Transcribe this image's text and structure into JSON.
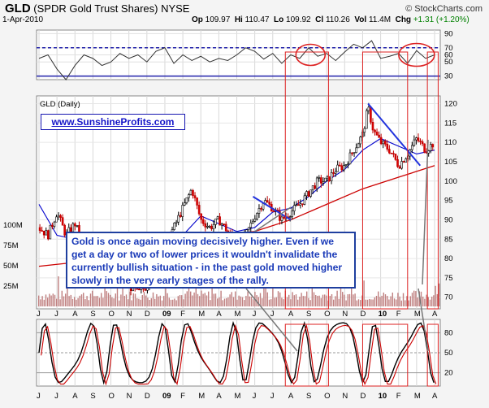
{
  "header": {
    "ticker": "GLD",
    "name": "(SPDR Gold Trust Shares)",
    "exchange": "NYSE",
    "credit": "© StockCharts.com",
    "date": "1-Apr-2010",
    "open_label": "Op",
    "open": "109.97",
    "high_label": "Hi",
    "high": "110.47",
    "low_label": "Lo",
    "low": "109.92",
    "close_label": "Cl",
    "close": "110.26",
    "volume_label": "Vol",
    "volume": "11.4M",
    "change_label": "Chg",
    "change": "+1.31 (+1.20%)"
  },
  "site_banner": "www.SunshineProfits.com",
  "annotation": "Gold is once again moving decisively higher. Even if we get a day or two of lower prices it wouldn't invalidate the currently bullish situation - in the past gold moved higher slowly in the very early stages of the rally.",
  "colors": {
    "background": "#f4f4f4",
    "price_candle": "#000000",
    "ma_short": "#0000cc",
    "ma_long": "#cc0000",
    "highlight": "#dd2222",
    "trendline": "#2233dd",
    "volume": "#c08080",
    "annotation_text": "#1a3ab8"
  },
  "chart_data": {
    "type": "candlestick",
    "x_labels": [
      "J",
      "J",
      "A",
      "S",
      "O",
      "N",
      "D",
      "09",
      "F",
      "M",
      "A",
      "M",
      "J",
      "J",
      "A",
      "S",
      "O",
      "N",
      "D",
      "10",
      "F",
      "M",
      "A"
    ],
    "price_panel": {
      "label": "GLD (Daily)",
      "yticks": [
        70,
        75,
        80,
        85,
        90,
        95,
        100,
        105,
        110,
        115,
        120
      ],
      "ylim": [
        67,
        122
      ],
      "price_path": [
        [
          0,
          88
        ],
        [
          0.5,
          86
        ],
        [
          1,
          92
        ],
        [
          1.5,
          86
        ],
        [
          2,
          89
        ],
        [
          2.5,
          83
        ],
        [
          3,
          80
        ],
        [
          3.5,
          84
        ],
        [
          4,
          78
        ],
        [
          4.5,
          75
        ],
        [
          5,
          73
        ],
        [
          5.5,
          71
        ],
        [
          6,
          73
        ],
        [
          6.5,
          79
        ],
        [
          7,
          84
        ],
        [
          7.5,
          88
        ],
        [
          8,
          93
        ],
        [
          8.5,
          98
        ],
        [
          9,
          90
        ],
        [
          9.5,
          88
        ],
        [
          10,
          90
        ],
        [
          10.5,
          87
        ],
        [
          11,
          84
        ],
        [
          11.5,
          86
        ],
        [
          12,
          91
        ],
        [
          12.5,
          95
        ],
        [
          13,
          93
        ],
        [
          13.5,
          90
        ],
        [
          14,
          92
        ],
        [
          14.5,
          94
        ],
        [
          15,
          97
        ],
        [
          15.5,
          100
        ],
        [
          16,
          100
        ],
        [
          16.5,
          103
        ],
        [
          17,
          104
        ],
        [
          17.5,
          108
        ],
        [
          18,
          112
        ],
        [
          18.3,
          119
        ],
        [
          18.6,
          113
        ],
        [
          19,
          110
        ],
        [
          19.5,
          108
        ],
        [
          20,
          104
        ],
        [
          20.5,
          107
        ],
        [
          21,
          111
        ],
        [
          21.5,
          108
        ],
        [
          22,
          110
        ]
      ],
      "ma_short_path": [
        [
          0,
          94
        ],
        [
          1,
          86
        ],
        [
          2,
          85
        ],
        [
          3,
          82
        ],
        [
          4,
          77
        ],
        [
          5,
          75
        ],
        [
          6,
          76
        ],
        [
          7,
          80
        ],
        [
          8,
          86
        ],
        [
          9,
          91
        ],
        [
          10,
          89
        ],
        [
          11,
          87
        ],
        [
          12,
          88
        ],
        [
          13,
          92
        ],
        [
          14,
          93
        ],
        [
          15,
          96
        ],
        [
          16,
          100
        ],
        [
          17,
          103
        ],
        [
          18,
          108
        ],
        [
          19,
          111
        ],
        [
          20,
          109
        ],
        [
          21,
          107
        ],
        [
          22,
          108
        ]
      ],
      "ma_long_path": [
        [
          0,
          78
        ],
        [
          2,
          79
        ],
        [
          4,
          80
        ],
        [
          6,
          81
        ],
        [
          8,
          84
        ],
        [
          10,
          86
        ],
        [
          12,
          87
        ],
        [
          14,
          90
        ],
        [
          16,
          94
        ],
        [
          18,
          98
        ],
        [
          20,
          101
        ],
        [
          22,
          104
        ]
      ],
      "trendlines": [
        {
          "from": [
            11.9,
            96
          ],
          "to": [
            14,
            90
          ]
        },
        {
          "from": [
            18.3,
            120
          ],
          "to": [
            21.2,
            104
          ]
        }
      ]
    },
    "volume_panel": {
      "yticks_labels": [
        "100M",
        "75M",
        "50M",
        "25M"
      ],
      "yticks": [
        100,
        75,
        50,
        25
      ],
      "max": 110
    },
    "rsi_panel": {
      "yticks": [
        30,
        50,
        60,
        70,
        90
      ],
      "ylim": [
        25,
        95
      ],
      "levels": [
        70,
        50,
        30
      ],
      "path": [
        [
          0,
          55
        ],
        [
          0.5,
          60
        ],
        [
          1,
          40
        ],
        [
          1.5,
          25
        ],
        [
          2,
          45
        ],
        [
          2.5,
          60
        ],
        [
          3,
          55
        ],
        [
          3.5,
          45
        ],
        [
          4,
          50
        ],
        [
          4.5,
          62
        ],
        [
          5,
          55
        ],
        [
          5.5,
          60
        ],
        [
          6,
          50
        ],
        [
          6.5,
          65
        ],
        [
          7,
          70
        ],
        [
          7.5,
          48
        ],
        [
          8,
          60
        ],
        [
          8.5,
          52
        ],
        [
          9,
          58
        ],
        [
          9.5,
          50
        ],
        [
          10,
          55
        ],
        [
          10.5,
          52
        ],
        [
          11,
          60
        ],
        [
          11.5,
          70
        ],
        [
          12,
          65
        ],
        [
          12.5,
          54
        ],
        [
          13,
          62
        ],
        [
          13.5,
          48
        ],
        [
          14,
          60
        ],
        [
          14.5,
          55
        ],
        [
          15,
          70
        ],
        [
          15.5,
          58
        ],
        [
          16,
          62
        ],
        [
          16.5,
          52
        ],
        [
          17,
          64
        ],
        [
          17.5,
          75
        ],
        [
          18,
          70
        ],
        [
          18.5,
          80
        ],
        [
          19,
          55
        ],
        [
          19.5,
          58
        ],
        [
          20,
          62
        ],
        [
          20.5,
          48
        ],
        [
          21,
          66
        ],
        [
          21.5,
          55
        ],
        [
          22,
          60
        ]
      ]
    },
    "stoch_panel": {
      "yticks": [
        20,
        50,
        80
      ],
      "ylim": [
        0,
        100
      ]
    }
  }
}
